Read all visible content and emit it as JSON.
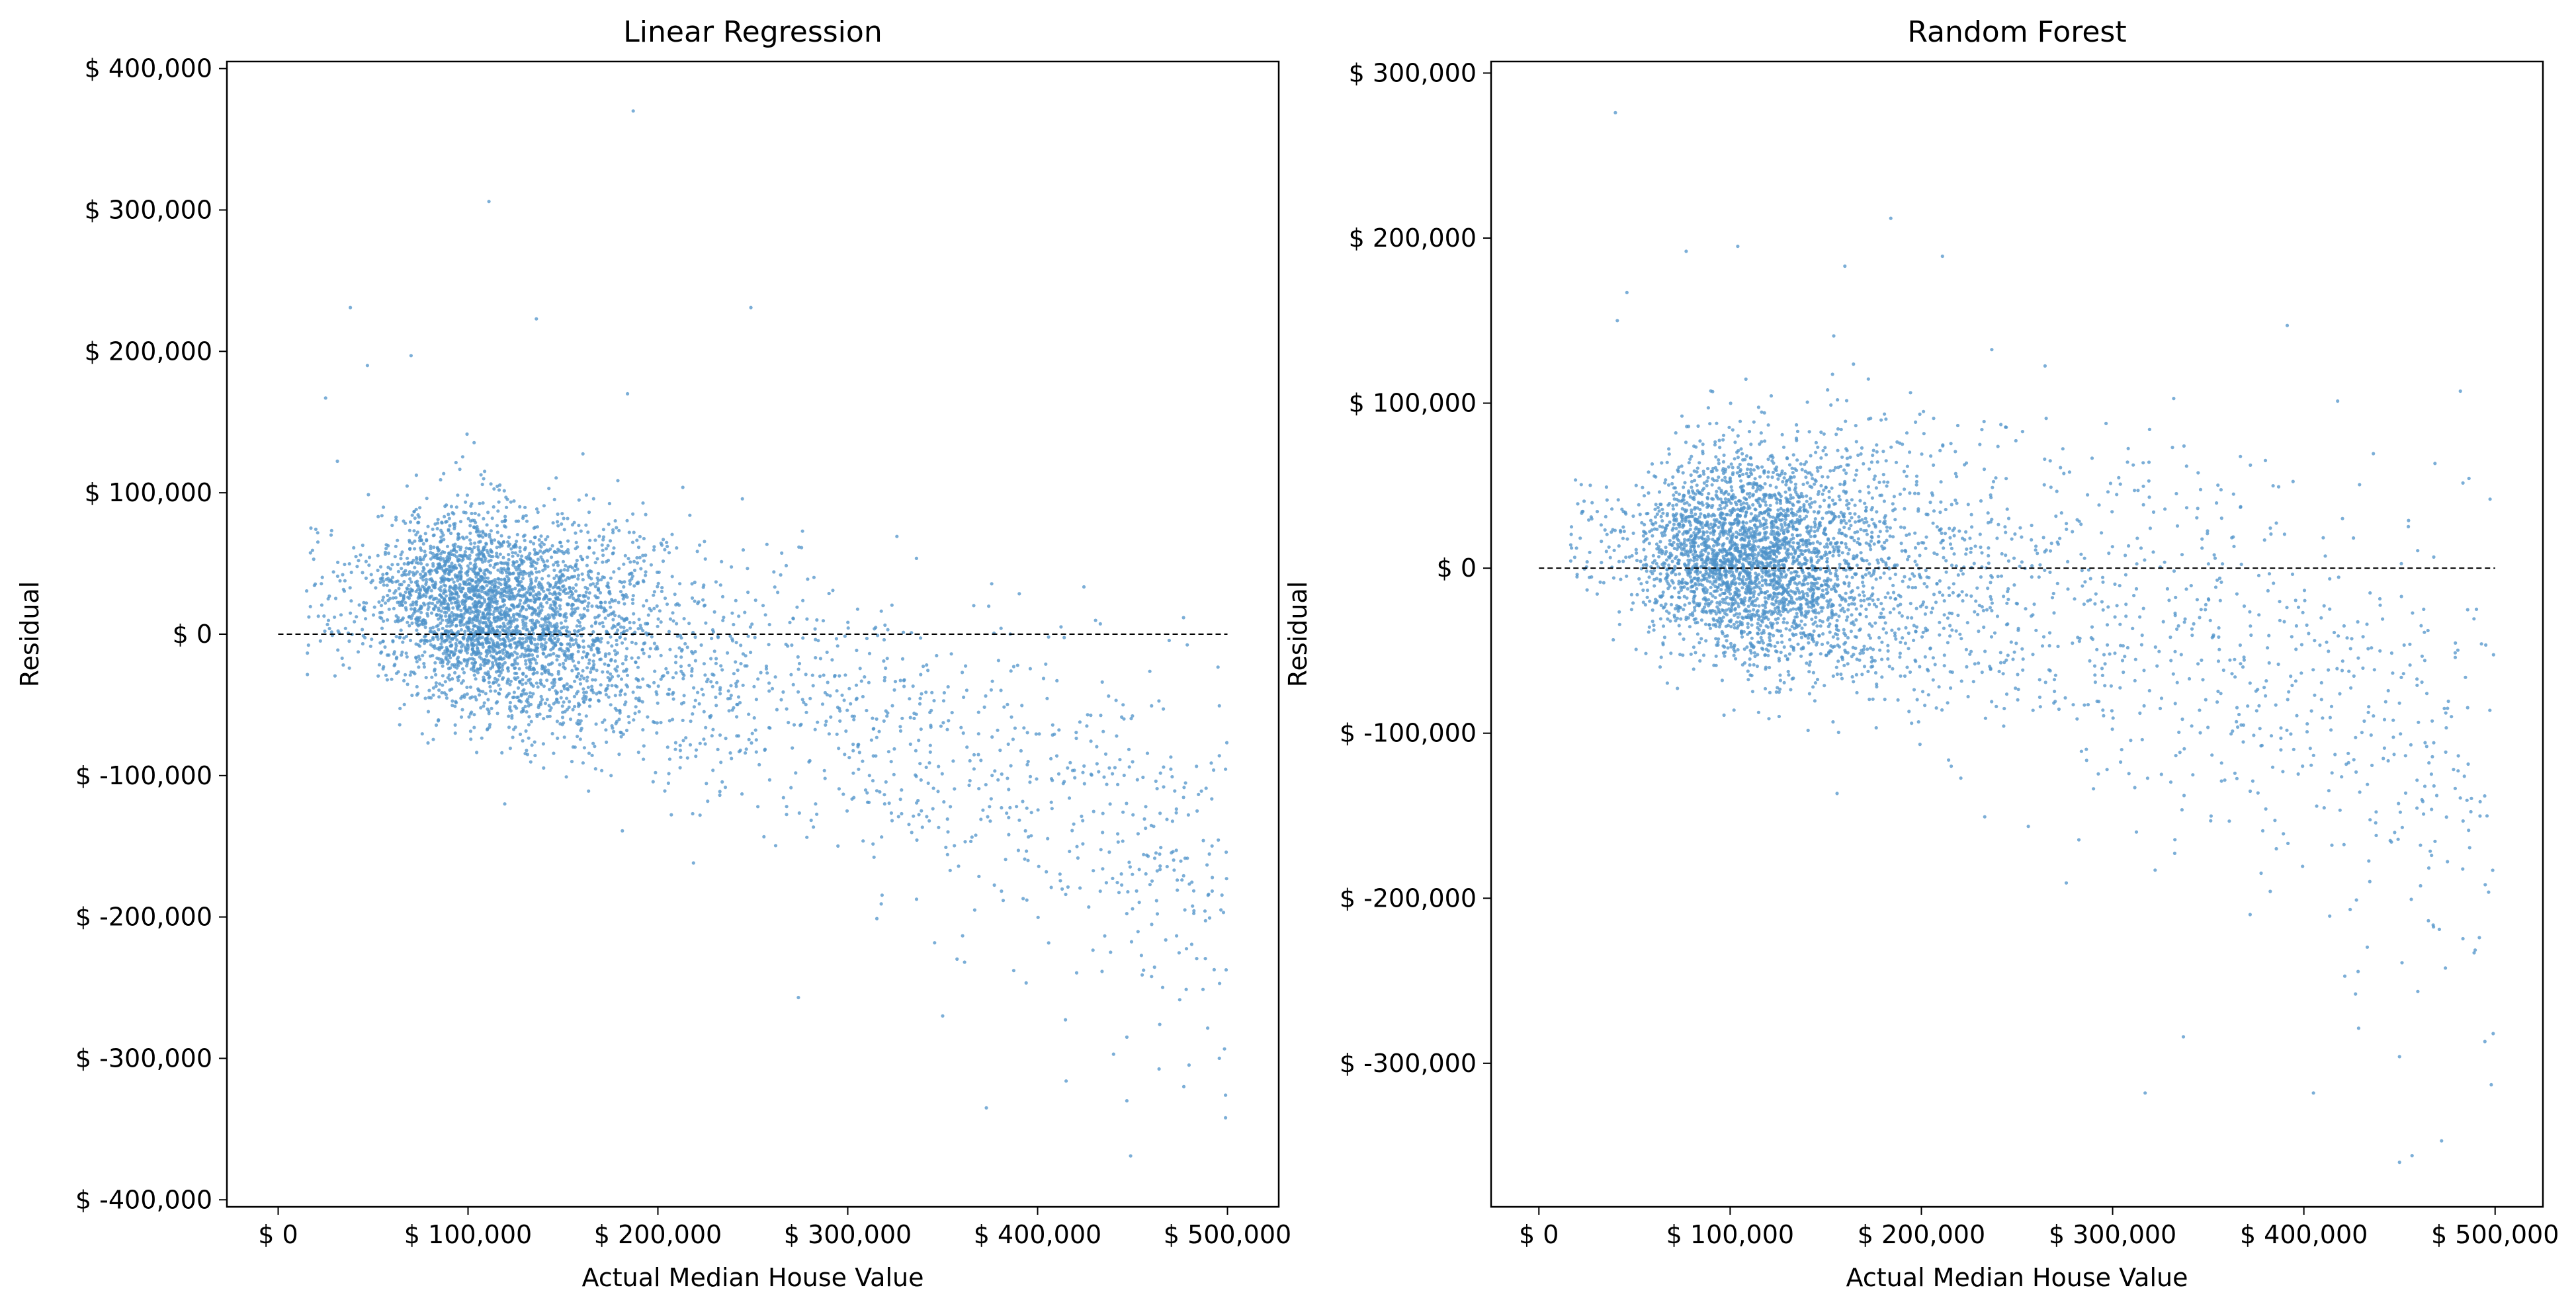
{
  "chart_data": [
    {
      "type": "scatter",
      "title": "Linear Regression",
      "xlabel": "Actual Median House Value",
      "ylabel": "Residual",
      "xlim": [
        -27000,
        527000
      ],
      "ylim": [
        -405000,
        405000
      ],
      "xticks": [
        0,
        100000,
        200000,
        300000,
        400000,
        500000
      ],
      "xtick_labels": [
        "$ 0",
        "$ 100,000",
        "$ 200,000",
        "$ 300,000",
        "$ 400,000",
        "$ 500,000"
      ],
      "yticks": [
        400000,
        300000,
        200000,
        100000,
        0,
        -100000,
        -200000,
        -300000,
        -400000
      ],
      "ytick_labels": [
        "$ 400,000",
        "$ 300,000",
        "$ 200,000",
        "$ 100,000",
        "$ 0",
        "$ -100,000",
        "$ -200,000",
        "$ -300,000",
        "$ -400,000"
      ],
      "grid": false,
      "zero_line": {
        "y": 0,
        "x_range": [
          0,
          500000
        ],
        "style": "dashed"
      },
      "point_color": "#4f93c9",
      "outliers": [
        [
          187000,
          370000
        ],
        [
          111000,
          306000
        ],
        [
          38000,
          231000
        ],
        [
          136000,
          223000
        ],
        [
          249000,
          231000
        ],
        [
          47000,
          190000
        ],
        [
          25000,
          167000
        ],
        [
          184000,
          170000
        ],
        [
          70000,
          197000
        ],
        [
          449000,
          -369000
        ],
        [
          477000,
          -320000
        ],
        [
          499000,
          -342000
        ],
        [
          499000,
          -326000
        ],
        [
          447000,
          -330000
        ],
        [
          415000,
          -316000
        ],
        [
          373000,
          -335000
        ],
        [
          440000,
          -297000
        ],
        [
          447000,
          -285000
        ],
        [
          274000,
          -257000
        ],
        [
          350000,
          -270000
        ]
      ],
      "series_model": {
        "n_points": 4200,
        "x_range": [
          15000,
          500000
        ],
        "trend": [
          [
            0,
            30000
          ],
          [
            100000,
            20000
          ],
          [
            200000,
            -10000
          ],
          [
            300000,
            -55000
          ],
          [
            400000,
            -110000
          ],
          [
            500000,
            -170000
          ]
        ],
        "spread": [
          [
            0,
            25000
          ],
          [
            150000,
            40000
          ],
          [
            300000,
            50000
          ],
          [
            500000,
            65000
          ]
        ],
        "seed": 11
      }
    },
    {
      "type": "scatter",
      "title": "Random Forest",
      "xlabel": "Actual Median House Value",
      "ylabel": "Residual",
      "xlim": [
        -25000,
        525000
      ],
      "ylim": [
        -387000,
        307000
      ],
      "xticks": [
        0,
        100000,
        200000,
        300000,
        400000,
        500000
      ],
      "xtick_labels": [
        "$ 0",
        "$ 100,000",
        "$ 200,000",
        "$ 300,000",
        "$ 400,000",
        "$ 500,000"
      ],
      "yticks": [
        300000,
        200000,
        100000,
        0,
        -100000,
        -200000,
        -300000
      ],
      "ytick_labels": [
        "$ 300,000",
        "$ 200,000",
        "$ 100,000",
        "$ 0",
        "$ -100,000",
        "$ -200,000",
        "$ -300,000"
      ],
      "grid": false,
      "zero_line": {
        "y": 0,
        "x_range": [
          0,
          500000
        ],
        "style": "dashed"
      },
      "point_color": "#4f93c9",
      "outliers": [
        [
          40000,
          276000
        ],
        [
          104000,
          195000
        ],
        [
          77000,
          192000
        ],
        [
          184000,
          212000
        ],
        [
          211000,
          189000
        ],
        [
          46000,
          167000
        ],
        [
          41000,
          150000
        ],
        [
          160000,
          183000
        ],
        [
          450000,
          -360000
        ],
        [
          472000,
          -347000
        ],
        [
          498000,
          -313000
        ],
        [
          499000,
          -282000
        ],
        [
          405000,
          -318000
        ],
        [
          450000,
          -296000
        ],
        [
          427000,
          -258000
        ],
        [
          317000,
          -318000
        ],
        [
          337000,
          -284000
        ]
      ],
      "series_model": {
        "n_points": 4200,
        "x_range": [
          15000,
          500000
        ],
        "trend": [
          [
            0,
            15000
          ],
          [
            100000,
            8000
          ],
          [
            200000,
            -5000
          ],
          [
            300000,
            -30000
          ],
          [
            400000,
            -70000
          ],
          [
            500000,
            -120000
          ]
        ],
        "spread": [
          [
            0,
            18000
          ],
          [
            150000,
            38000
          ],
          [
            300000,
            55000
          ],
          [
            500000,
            75000
          ]
        ],
        "seed": 29
      }
    }
  ]
}
